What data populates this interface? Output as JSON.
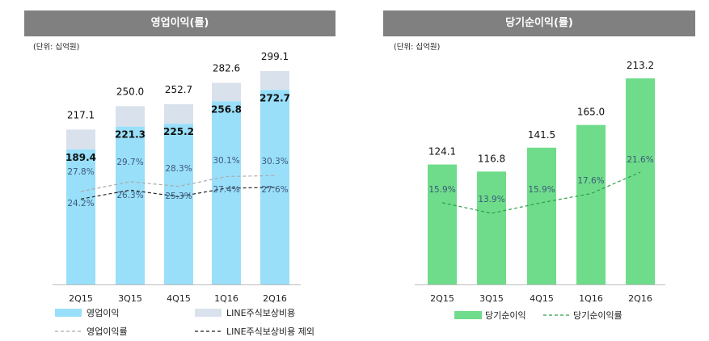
{
  "left": {
    "title": "영업이익(률)",
    "unit": "(단위: 십억원)",
    "legend": {
      "op_income": "영업이익",
      "line_stock": "LINE주식보상비용",
      "op_margin": "영업이익률",
      "excl_line": "LINE주식보상비용 제외"
    }
  },
  "right": {
    "title": "당기순이익(률)",
    "unit": "(단위: 십억원)",
    "legend": {
      "net_income": "당기순이익",
      "net_margin": "당기순이익률"
    }
  },
  "colors": {
    "op_income": "#99DFFA",
    "line_stock": "#D9E1EC",
    "net_income": "#6EDC8A",
    "op_margin_line": "#AAAAAA",
    "excl_line": "#222222",
    "net_margin_line": "#2E9E4A"
  },
  "chart_data": [
    {
      "type": "bar",
      "categories": [
        "2Q15",
        "3Q15",
        "4Q15",
        "1Q16",
        "2Q16"
      ],
      "series": [
        {
          "name": "영업이익",
          "values": [
            189.4,
            221.3,
            225.2,
            256.8,
            272.7
          ],
          "labels": [
            "189.4",
            "221.3",
            "225.2",
            "256.8",
            "272.7"
          ]
        },
        {
          "name": "LINE주식보상비용",
          "values": [
            27.7,
            28.7,
            27.5,
            25.8,
            26.4
          ]
        },
        {
          "name": "영업이익률",
          "values": [
            24.2,
            26.3,
            25.3,
            27.4,
            27.6
          ],
          "labels": [
            "24.2%",
            "26.3%",
            "25.3%",
            "27.4%",
            "27.6%"
          ]
        },
        {
          "name": "LINE주식보상비용 제외",
          "values": [
            27.8,
            29.7,
            28.3,
            30.1,
            30.3
          ],
          "labels": [
            "27.8%",
            "29.7%",
            "28.3%",
            "30.1%",
            "30.3%"
          ]
        }
      ],
      "totals": [
        217.1,
        250.0,
        252.7,
        282.6,
        299.1
      ],
      "total_labels": [
        "217.1",
        "250.0",
        "252.7",
        "282.6",
        "299.1"
      ],
      "ylim": [
        0,
        299.1
      ]
    },
    {
      "type": "bar",
      "categories": [
        "2Q15",
        "3Q15",
        "4Q15",
        "1Q16",
        "2Q16"
      ],
      "series": [
        {
          "name": "당기순이익",
          "values": [
            124.1,
            116.8,
            141.5,
            165.0,
            213.2
          ],
          "labels": [
            "124.1",
            "116.8",
            "141.5",
            "165.0",
            "213.2"
          ]
        },
        {
          "name": "당기순이익률",
          "values": [
            15.9,
            13.9,
            15.9,
            17.6,
            21.6
          ],
          "labels": [
            "15.9%",
            "13.9%",
            "15.9%",
            "17.6%",
            "21.6%"
          ]
        }
      ],
      "ylim": [
        0,
        213.2
      ]
    }
  ]
}
